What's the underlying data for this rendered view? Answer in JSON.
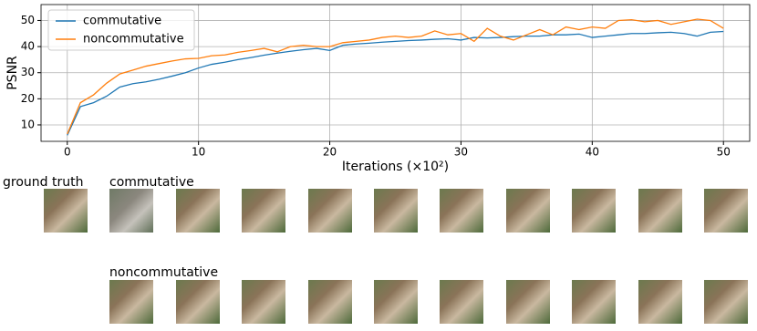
{
  "chart_data": {
    "type": "line",
    "xlabel": "Iterations (×10²)",
    "ylabel": "PSNR",
    "x": [
      0,
      1,
      2,
      3,
      4,
      5,
      6,
      7,
      8,
      9,
      10,
      11,
      12,
      13,
      14,
      15,
      16,
      17,
      18,
      19,
      20,
      21,
      22,
      23,
      24,
      25,
      26,
      27,
      28,
      29,
      30,
      31,
      32,
      33,
      34,
      35,
      36,
      37,
      38,
      39,
      40,
      41,
      42,
      43,
      44,
      45,
      46,
      47,
      48,
      49,
      50
    ],
    "series": [
      {
        "name": "commutative",
        "color": "#1f77b4",
        "values": [
          6,
          17,
          18.5,
          21,
          24.5,
          25.8,
          26.5,
          27.5,
          28.7,
          30,
          31.8,
          33.2,
          34,
          35,
          35.8,
          36.7,
          37.5,
          38.2,
          38.8,
          39.3,
          38.5,
          40.5,
          41,
          41.3,
          41.7,
          42,
          42.3,
          42.5,
          42.8,
          43,
          42.5,
          43.5,
          43.3,
          43.5,
          43.8,
          44,
          44,
          44.5,
          44.5,
          44.8,
          43.5,
          44,
          44.5,
          45,
          45,
          45.3,
          45.5,
          45,
          44,
          45.5,
          45.8
        ]
      },
      {
        "name": "noncommutative",
        "color": "#ff7f0e",
        "values": [
          6.5,
          18.5,
          21.5,
          26,
          29.5,
          31,
          32.5,
          33.5,
          34.5,
          35.3,
          35.5,
          36.5,
          36.8,
          37.8,
          38.5,
          39.3,
          38,
          40,
          40.5,
          40,
          40,
          41.5,
          42,
          42.5,
          43.5,
          44,
          43.5,
          44,
          46,
          44.5,
          45,
          42,
          47,
          44,
          42.5,
          44.5,
          46.5,
          44.5,
          47.5,
          46.5,
          47.5,
          47,
          50,
          50.3,
          49.5,
          50,
          48.5,
          49.5,
          50.5,
          50,
          47
        ]
      }
    ],
    "xlim": [
      -2,
      52
    ],
    "ylim": [
      3.7,
      56.1
    ],
    "xticks": [
      0,
      10,
      20,
      30,
      40,
      50
    ],
    "yticks": [
      10,
      20,
      30,
      40,
      50
    ],
    "grid": true,
    "legend": "upper-left"
  },
  "image_grid": {
    "labels": [
      "ground truth",
      "commutative",
      "noncommutative"
    ]
  }
}
